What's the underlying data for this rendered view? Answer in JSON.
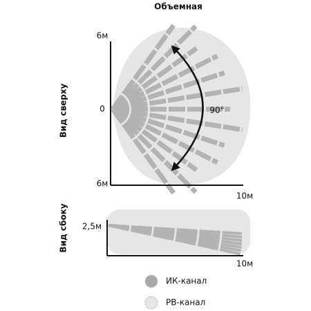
{
  "title": "Объемная",
  "top_view": {
    "label": "Вид сверху",
    "y_top": "6м",
    "y_zero": "0",
    "y_bottom": "6м",
    "x_max": "10м",
    "angle": "90°"
  },
  "side_view": {
    "label": "Вид сбоку",
    "height": "2,5м",
    "x_max": "10м"
  },
  "legend": {
    "items": [
      "ИК-канал",
      "РВ-канал"
    ]
  }
}
